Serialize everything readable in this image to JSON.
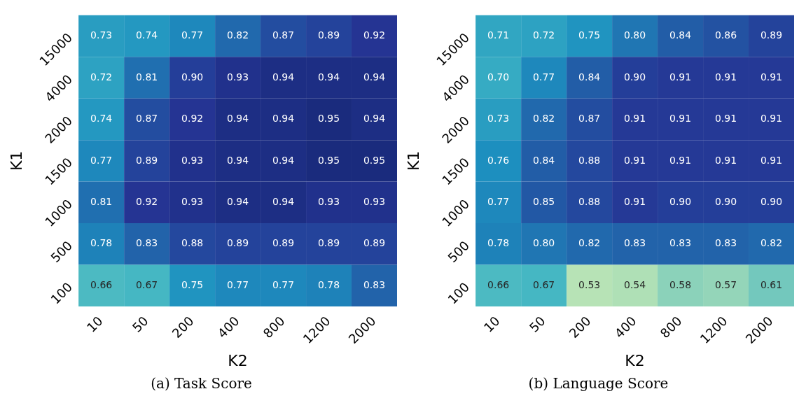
{
  "chart_data": [
    {
      "type": "heatmap",
      "title": "(a) Task Score",
      "xlabel": "K2",
      "ylabel": "K1",
      "categories": [
        "10",
        "50",
        "200",
        "400",
        "800",
        "1200",
        "2000"
      ],
      "y_categories": [
        "15000",
        "4000",
        "2000",
        "1500",
        "1000",
        "500",
        "100"
      ],
      "cells": [
        [
          0.73,
          0.74,
          0.77,
          0.82,
          0.87,
          0.89,
          0.92
        ],
        [
          0.72,
          0.81,
          0.9,
          0.93,
          0.94,
          0.94,
          0.94
        ],
        [
          0.74,
          0.87,
          0.92,
          0.94,
          0.94,
          0.95,
          0.94
        ],
        [
          0.77,
          0.89,
          0.93,
          0.94,
          0.94,
          0.95,
          0.95
        ],
        [
          0.81,
          0.92,
          0.93,
          0.94,
          0.94,
          0.93,
          0.93
        ],
        [
          0.78,
          0.83,
          0.88,
          0.89,
          0.89,
          0.89,
          0.89
        ],
        [
          0.66,
          0.67,
          0.75,
          0.77,
          0.77,
          0.78,
          0.83
        ]
      ],
      "cell_labels": [
        [
          "0.73",
          "0.74",
          "0.77",
          "0.82",
          "0.87",
          "0.89",
          "0.92"
        ],
        [
          "0.72",
          "0.81",
          "0.90",
          "0.93",
          "0.94",
          "0.94",
          "0.94"
        ],
        [
          "0.74",
          "0.87",
          "0.92",
          "0.94",
          "0.94",
          "0.95",
          "0.94"
        ],
        [
          "0.77",
          "0.89",
          "0.93",
          "0.94",
          "0.94",
          "0.95",
          "0.95"
        ],
        [
          "0.81",
          "0.92",
          "0.93",
          "0.94",
          "0.94",
          "0.93",
          "0.93"
        ],
        [
          "0.78",
          "0.83",
          "0.88",
          "0.89",
          "0.89",
          "0.89",
          "0.89"
        ],
        [
          "0.66",
          "0.67",
          "0.75",
          "0.77",
          "0.77",
          "0.78",
          "0.83"
        ]
      ]
    },
    {
      "type": "heatmap",
      "title": "(b) Language Score",
      "xlabel": "K2",
      "ylabel": "K1",
      "categories": [
        "10",
        "50",
        "200",
        "400",
        "800",
        "1200",
        "2000"
      ],
      "y_categories": [
        "15000",
        "4000",
        "2000",
        "1500",
        "1000",
        "500",
        "100"
      ],
      "cells": [
        [
          0.71,
          0.72,
          0.75,
          0.8,
          0.84,
          0.86,
          0.89
        ],
        [
          0.7,
          0.77,
          0.84,
          0.9,
          0.91,
          0.91,
          0.91
        ],
        [
          0.73,
          0.82,
          0.87,
          0.91,
          0.91,
          0.91,
          0.91
        ],
        [
          0.76,
          0.84,
          0.88,
          0.91,
          0.91,
          0.91,
          0.91
        ],
        [
          0.77,
          0.85,
          0.88,
          0.91,
          0.9,
          0.9,
          0.9
        ],
        [
          0.78,
          0.8,
          0.82,
          0.83,
          0.83,
          0.83,
          0.82
        ],
        [
          0.66,
          0.67,
          0.53,
          0.54,
          0.58,
          0.57,
          0.61
        ]
      ],
      "cell_labels": [
        [
          "0.71",
          "0.72",
          "0.75",
          "0.80",
          "0.84",
          "0.86",
          "0.89"
        ],
        [
          "0.70",
          "0.77",
          "0.84",
          "0.90",
          "0.91",
          "0.91",
          "0.91"
        ],
        [
          "0.73",
          "0.82",
          "0.87",
          "0.91",
          "0.91",
          "0.91",
          "0.91"
        ],
        [
          "0.76",
          "0.84",
          "0.88",
          "0.91",
          "0.91",
          "0.91",
          "0.91"
        ],
        [
          "0.77",
          "0.85",
          "0.88",
          "0.91",
          "0.90",
          "0.90",
          "0.90"
        ],
        [
          "0.78",
          "0.80",
          "0.82",
          "0.83",
          "0.83",
          "0.83",
          "0.82"
        ],
        [
          "0.66",
          "0.67",
          "0.53",
          "0.54",
          "0.58",
          "0.57",
          "0.61"
        ]
      ]
    }
  ]
}
